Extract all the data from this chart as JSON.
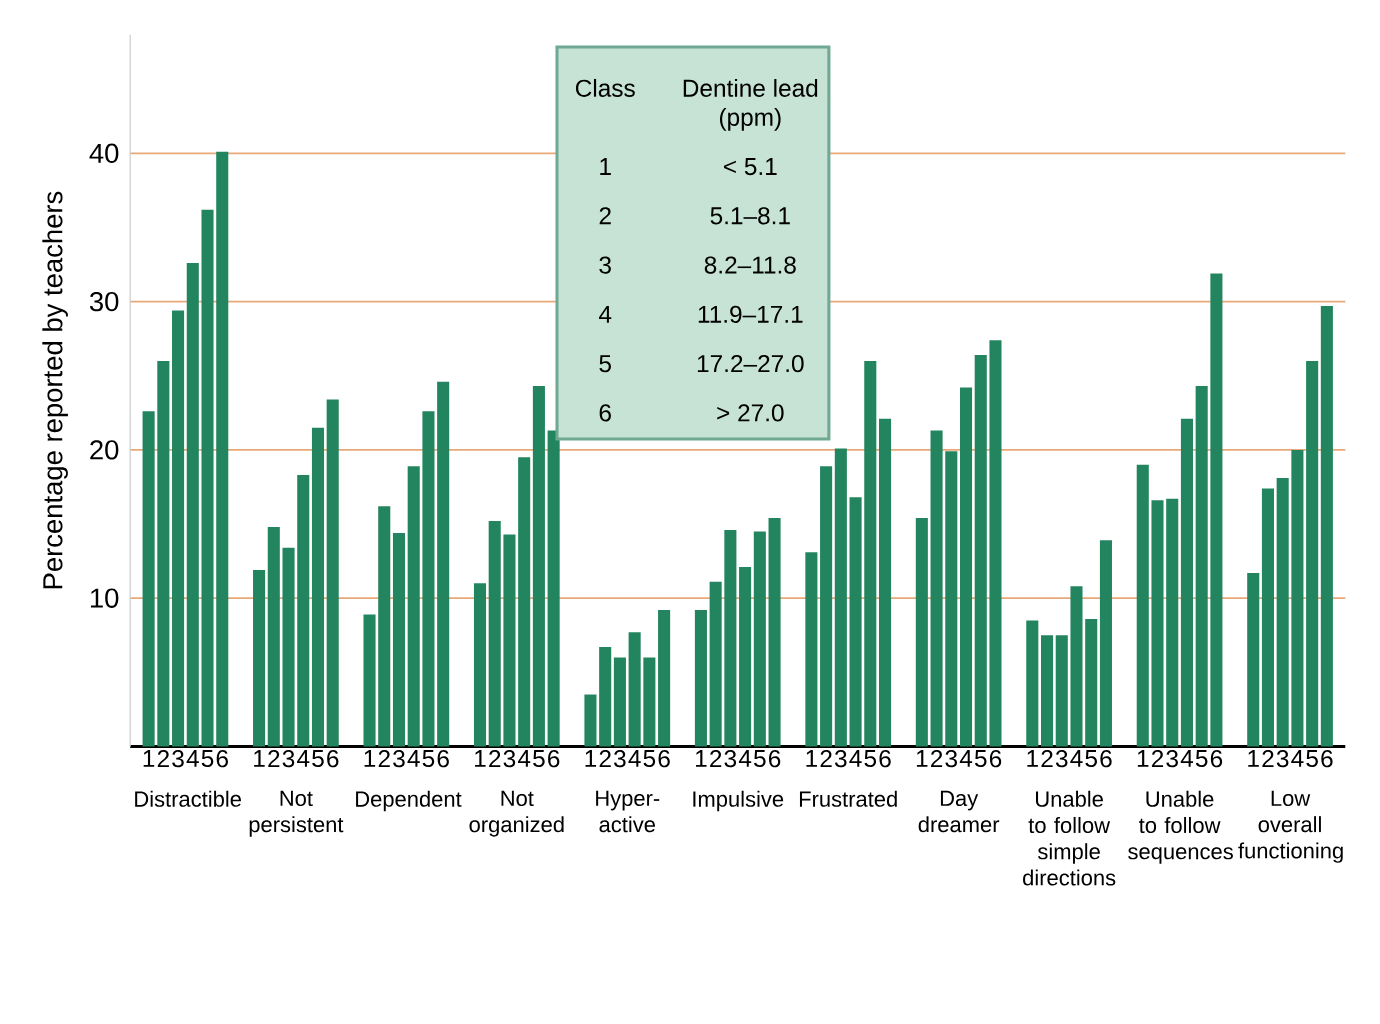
{
  "chart_data": {
    "type": "bar",
    "ylabel": "Percentage reported by teachers",
    "categories": [
      "Distractible",
      "Not persistent",
      "Dependent",
      "Not organized",
      "Hyper-active",
      "Impulsive",
      "Frustrated",
      "Day dreamer",
      "Unable to follow simple directions",
      "Unable to follow sequences",
      "Low overall functioning"
    ],
    "series": [
      {
        "name": "1",
        "color": "#23855f",
        "values": [
          22.6,
          11.9,
          8.9,
          11.0,
          3.5,
          9.2,
          13.1,
          15.4,
          8.5,
          19.0,
          11.7
        ]
      },
      {
        "name": "2",
        "color": "#23855f",
        "values": [
          26.0,
          14.8,
          16.2,
          15.2,
          6.7,
          11.1,
          18.9,
          21.3,
          7.5,
          16.6,
          17.4
        ]
      },
      {
        "name": "3",
        "color": "#23855f",
        "values": [
          29.4,
          13.4,
          14.4,
          14.3,
          6.0,
          14.6,
          20.1,
          19.9,
          7.5,
          16.7,
          18.1
        ]
      },
      {
        "name": "4",
        "color": "#23855f",
        "values": [
          32.6,
          18.3,
          18.9,
          19.5,
          7.7,
          12.1,
          16.8,
          24.2,
          10.8,
          22.1,
          20.0
        ]
      },
      {
        "name": "5",
        "color": "#23855f",
        "values": [
          36.2,
          21.5,
          22.6,
          24.3,
          6.0,
          14.5,
          26.0,
          26.4,
          8.6,
          24.3,
          26.0
        ]
      },
      {
        "name": "6",
        "color": "#23855f",
        "values": [
          40.1,
          23.4,
          24.6,
          21.3,
          9.2,
          15.4,
          22.1,
          27.4,
          13.9,
          31.9,
          29.7
        ]
      }
    ],
    "ylim": [
      0,
      48
    ],
    "yticks": [
      10,
      20,
      30,
      40
    ],
    "grid": "y",
    "annotations": [
      "Class",
      "Dentine lead (ppm)",
      "1",
      "< 5.1",
      "2",
      "5.1–8.1",
      "3",
      "8.2–11.8",
      "4",
      "11.9–17.1",
      "5",
      "17.2–27.0",
      "6",
      "> 27.0"
    ]
  }
}
